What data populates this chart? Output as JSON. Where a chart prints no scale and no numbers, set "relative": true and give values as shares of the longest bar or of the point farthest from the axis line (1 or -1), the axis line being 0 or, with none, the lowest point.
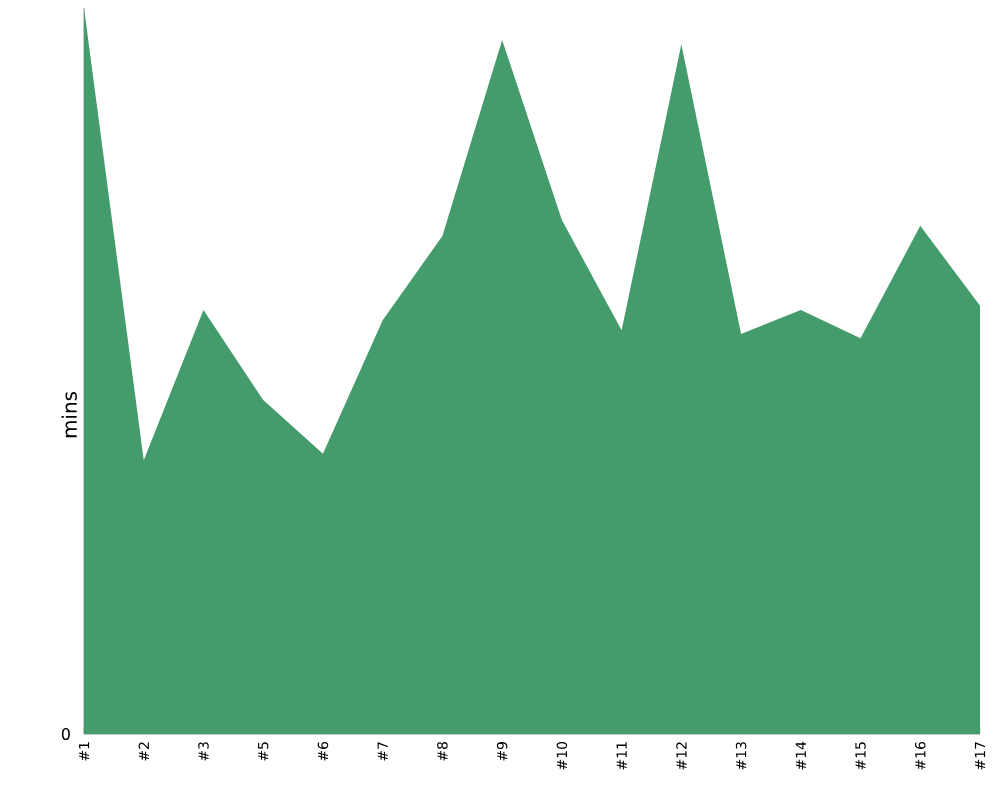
{
  "chart_data": {
    "type": "area",
    "ylabel": "mins",
    "relative": true,
    "color": "#449b6b",
    "annotations": [
      "0"
    ],
    "categories": [
      "#1",
      "#2",
      "#3",
      "#5",
      "#6",
      "#7",
      "#8",
      "#9",
      "#10",
      "#11",
      "#12",
      "#13",
      "#14",
      "#15",
      "#16",
      "#17"
    ],
    "values": [
      1,
      0.377,
      0.584,
      0.46,
      0.386,
      0.57,
      0.686,
      0.956,
      0.708,
      0.556,
      0.95,
      0.551,
      0.584,
      0.545,
      0.7,
      0.59
    ]
  }
}
